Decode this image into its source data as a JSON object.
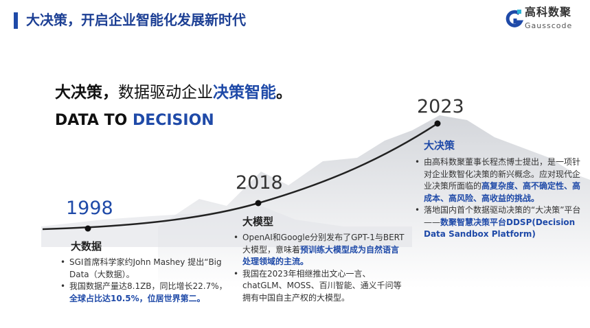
{
  "header": {
    "title": "大决策，开启企业智能化发展新时代",
    "logo_cn": "高科数聚",
    "logo_en": "Gausscode"
  },
  "headline": {
    "part1": "大决策，",
    "part2": "数据驱动企业",
    "part3": "决策智能",
    "part4": "。",
    "sub1": "DATA TO ",
    "sub2": "DECISION"
  },
  "colors": {
    "accent": "#1f4aa8",
    "title": "#1c3f94"
  },
  "timeline": [
    {
      "year": "1998",
      "heading": "大数据",
      "bullets": [
        {
          "text": "SGI首席科学家约John Mashey 提出“Big Data（大数据）。",
          "highlight": ""
        },
        {
          "text": "我国数据产量达8.1ZB，同比增长22.7%，",
          "highlight": "全球占比达10.5%，位居世界第二。"
        }
      ]
    },
    {
      "year": "2018",
      "heading": "大模型",
      "bullets": [
        {
          "text": "OpenAI和Google分别发布了GPT-1与BERT大模型，意味着",
          "highlight": "预训练大模型成为自然语言处理领域的主流。"
        },
        {
          "text": "我国在2023年相继推出文心一言、chatGLM、MOSS、百川智能、通义千问等拥有中国自主产权的大模型。",
          "highlight": ""
        }
      ]
    },
    {
      "year": "2023",
      "heading": "大决策",
      "bullets": [
        {
          "text": "由高科数聚董事长程杰博士提出，是一项针对企业数智化决策的新兴概念。应对现代企业决策所面临的",
          "highlight": "高复杂度、高不确定性、高成本、高风险、高收益的挑战。"
        },
        {
          "text": "落地国内首个数据驱动决策的“大决策”平台——",
          "highlight": "数聚智慧决策平台DDSP(Decision Data Sandbox Platform)"
        }
      ]
    }
  ]
}
